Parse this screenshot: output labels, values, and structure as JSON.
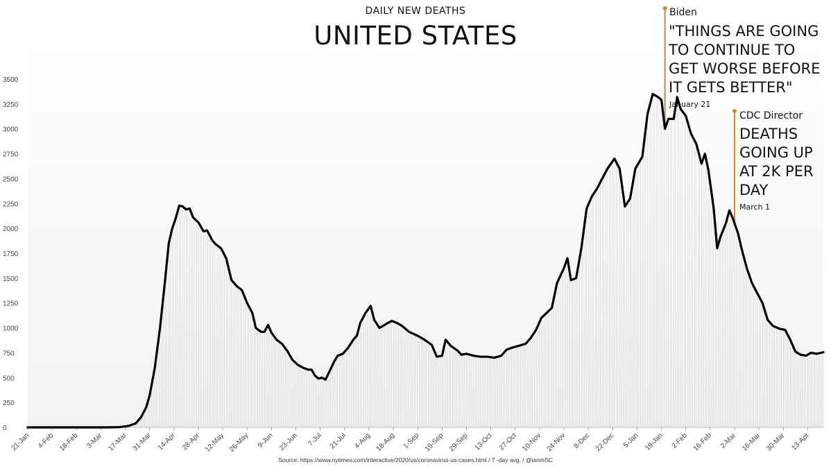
{
  "chart_data": {
    "type": "line",
    "subtitle": "DAILY NEW DEATHS",
    "title": "UNITED STATES",
    "xlabel": "",
    "ylabel": "",
    "ylim": [
      0,
      3500
    ],
    "yticks": [
      0,
      250,
      500,
      750,
      1000,
      1250,
      1500,
      1750,
      2000,
      2250,
      2500,
      2750,
      3000,
      3250,
      3500
    ],
    "xlim": [
      "2020-01-21",
      "2021-04-22"
    ],
    "xticks": [
      {
        "date": "2020-01-21",
        "label": "21-Jan"
      },
      {
        "date": "2020-02-04",
        "label": "4-Feb"
      },
      {
        "date": "2020-02-18",
        "label": "18-Feb"
      },
      {
        "date": "2020-03-03",
        "label": "3-Mar"
      },
      {
        "date": "2020-03-17",
        "label": "17-Mar"
      },
      {
        "date": "2020-03-31",
        "label": "31-Mar"
      },
      {
        "date": "2020-04-14",
        "label": "14-Apr"
      },
      {
        "date": "2020-04-28",
        "label": "28-Apr"
      },
      {
        "date": "2020-05-12",
        "label": "12-May"
      },
      {
        "date": "2020-05-26",
        "label": "26-May"
      },
      {
        "date": "2020-06-09",
        "label": "9-Jun"
      },
      {
        "date": "2020-06-23",
        "label": "23-Jun"
      },
      {
        "date": "2020-07-07",
        "label": "7-Jul"
      },
      {
        "date": "2020-07-21",
        "label": "21-Jul"
      },
      {
        "date": "2020-08-04",
        "label": "4-Aug"
      },
      {
        "date": "2020-08-18",
        "label": "18-Aug"
      },
      {
        "date": "2020-09-01",
        "label": "1-Sep"
      },
      {
        "date": "2020-09-15",
        "label": "15-Sep"
      },
      {
        "date": "2020-09-29",
        "label": "29-Sep"
      },
      {
        "date": "2020-10-13",
        "label": "13-Oct"
      },
      {
        "date": "2020-10-27",
        "label": "27-Oct"
      },
      {
        "date": "2020-11-10",
        "label": "10-Nov"
      },
      {
        "date": "2020-11-24",
        "label": "24-Nov"
      },
      {
        "date": "2020-12-08",
        "label": "8-Dec"
      },
      {
        "date": "2020-12-22",
        "label": "22-Dec"
      },
      {
        "date": "2021-01-05",
        "label": "5-Jan"
      },
      {
        "date": "2021-01-19",
        "label": "19-Jan"
      },
      {
        "date": "2021-02-02",
        "label": "2-Feb"
      },
      {
        "date": "2021-02-16",
        "label": "16-Feb"
      },
      {
        "date": "2021-03-02",
        "label": "2-Mar"
      },
      {
        "date": "2021-03-16",
        "label": "16-Mar"
      },
      {
        "date": "2021-03-30",
        "label": "30-Mar"
      },
      {
        "date": "2021-04-13",
        "label": "13-Apr"
      }
    ],
    "grid": false,
    "series": [
      {
        "name": "",
        "color": "#000000",
        "points": [
          [
            "2020-01-21",
            0
          ],
          [
            "2020-03-07",
            0
          ],
          [
            "2020-03-14",
            3
          ],
          [
            "2020-03-19",
            15
          ],
          [
            "2020-03-23",
            40
          ],
          [
            "2020-03-26",
            100
          ],
          [
            "2020-03-29",
            200
          ],
          [
            "2020-03-31",
            320
          ],
          [
            "2020-04-03",
            600
          ],
          [
            "2020-04-06",
            1000
          ],
          [
            "2020-04-09",
            1500
          ],
          [
            "2020-04-11",
            1850
          ],
          [
            "2020-04-13",
            2000
          ],
          [
            "2020-04-15",
            2100
          ],
          [
            "2020-04-17",
            2230
          ],
          [
            "2020-04-19",
            2220
          ],
          [
            "2020-04-21",
            2190
          ],
          [
            "2020-04-23",
            2200
          ],
          [
            "2020-04-25",
            2110
          ],
          [
            "2020-04-28",
            2060
          ],
          [
            "2020-05-01",
            1970
          ],
          [
            "2020-05-03",
            1980
          ],
          [
            "2020-05-06",
            1880
          ],
          [
            "2020-05-08",
            1840
          ],
          [
            "2020-05-11",
            1800
          ],
          [
            "2020-05-14",
            1700
          ],
          [
            "2020-05-17",
            1480
          ],
          [
            "2020-05-20",
            1420
          ],
          [
            "2020-05-23",
            1380
          ],
          [
            "2020-05-26",
            1250
          ],
          [
            "2020-05-29",
            1150
          ],
          [
            "2020-05-31",
            1000
          ],
          [
            "2020-06-03",
            960
          ],
          [
            "2020-06-05",
            960
          ],
          [
            "2020-06-07",
            1030
          ],
          [
            "2020-06-09",
            950
          ],
          [
            "2020-06-12",
            880
          ],
          [
            "2020-06-15",
            840
          ],
          [
            "2020-06-18",
            770
          ],
          [
            "2020-06-21",
            680
          ],
          [
            "2020-06-24",
            630
          ],
          [
            "2020-06-27",
            600
          ],
          [
            "2020-06-30",
            580
          ],
          [
            "2020-07-02",
            580
          ],
          [
            "2020-07-04",
            520
          ],
          [
            "2020-07-06",
            490
          ],
          [
            "2020-07-08",
            500
          ],
          [
            "2020-07-10",
            480
          ],
          [
            "2020-07-12",
            550
          ],
          [
            "2020-07-15",
            660
          ],
          [
            "2020-07-17",
            720
          ],
          [
            "2020-07-20",
            740
          ],
          [
            "2020-07-23",
            800
          ],
          [
            "2020-07-26",
            880
          ],
          [
            "2020-07-28",
            920
          ],
          [
            "2020-07-30",
            1050
          ],
          [
            "2020-08-02",
            1150
          ],
          [
            "2020-08-05",
            1220
          ],
          [
            "2020-08-07",
            1080
          ],
          [
            "2020-08-10",
            1000
          ],
          [
            "2020-08-12",
            1020
          ],
          [
            "2020-08-15",
            1050
          ],
          [
            "2020-08-17",
            1070
          ],
          [
            "2020-08-20",
            1050
          ],
          [
            "2020-08-23",
            1020
          ],
          [
            "2020-08-27",
            960
          ],
          [
            "2020-09-01",
            920
          ],
          [
            "2020-09-05",
            880
          ],
          [
            "2020-09-09",
            830
          ],
          [
            "2020-09-12",
            710
          ],
          [
            "2020-09-15",
            720
          ],
          [
            "2020-09-17",
            880
          ],
          [
            "2020-09-20",
            820
          ],
          [
            "2020-09-24",
            770
          ],
          [
            "2020-09-26",
            730
          ],
          [
            "2020-09-29",
            740
          ],
          [
            "2020-10-03",
            720
          ],
          [
            "2020-10-07",
            710
          ],
          [
            "2020-10-11",
            710
          ],
          [
            "2020-10-15",
            700
          ],
          [
            "2020-10-19",
            720
          ],
          [
            "2020-10-22",
            780
          ],
          [
            "2020-10-25",
            800
          ],
          [
            "2020-10-29",
            820
          ],
          [
            "2020-11-02",
            840
          ],
          [
            "2020-11-05",
            900
          ],
          [
            "2020-11-08",
            980
          ],
          [
            "2020-11-11",
            1100
          ],
          [
            "2020-11-14",
            1150
          ],
          [
            "2020-11-17",
            1200
          ],
          [
            "2020-11-20",
            1450
          ],
          [
            "2020-11-24",
            1600
          ],
          [
            "2020-11-26",
            1700
          ],
          [
            "2020-11-28",
            1480
          ],
          [
            "2020-12-01",
            1500
          ],
          [
            "2020-12-04",
            1800
          ],
          [
            "2020-12-07",
            2200
          ],
          [
            "2020-12-10",
            2320
          ],
          [
            "2020-12-13",
            2400
          ],
          [
            "2020-12-16",
            2500
          ],
          [
            "2020-12-19",
            2600
          ],
          [
            "2020-12-23",
            2700
          ],
          [
            "2020-12-26",
            2600
          ],
          [
            "2020-12-29",
            2220
          ],
          [
            "2021-01-01",
            2300
          ],
          [
            "2021-01-04",
            2600
          ],
          [
            "2021-01-08",
            2720
          ],
          [
            "2021-01-11",
            3150
          ],
          [
            "2021-01-14",
            3350
          ],
          [
            "2021-01-17",
            3320
          ],
          [
            "2021-01-19",
            3290
          ],
          [
            "2021-01-21",
            3000
          ],
          [
            "2021-01-23",
            3100
          ],
          [
            "2021-01-26",
            3100
          ],
          [
            "2021-01-28",
            3320
          ],
          [
            "2021-01-30",
            3200
          ],
          [
            "2021-02-02",
            3130
          ],
          [
            "2021-02-05",
            2950
          ],
          [
            "2021-02-08",
            2850
          ],
          [
            "2021-02-11",
            2650
          ],
          [
            "2021-02-13",
            2750
          ],
          [
            "2021-02-15",
            2580
          ],
          [
            "2021-02-18",
            2200
          ],
          [
            "2021-02-20",
            1800
          ],
          [
            "2021-02-22",
            1920
          ],
          [
            "2021-02-25",
            2050
          ],
          [
            "2021-02-27",
            2180
          ],
          [
            "2021-03-01",
            2100
          ],
          [
            "2021-03-04",
            1950
          ],
          [
            "2021-03-06",
            1800
          ],
          [
            "2021-03-09",
            1600
          ],
          [
            "2021-03-12",
            1450
          ],
          [
            "2021-03-15",
            1350
          ],
          [
            "2021-03-18",
            1250
          ],
          [
            "2021-03-21",
            1080
          ],
          [
            "2021-03-24",
            1020
          ],
          [
            "2021-03-28",
            990
          ],
          [
            "2021-03-31",
            980
          ],
          [
            "2021-04-03",
            880
          ],
          [
            "2021-04-06",
            760
          ],
          [
            "2021-04-09",
            730
          ],
          [
            "2021-04-12",
            720
          ],
          [
            "2021-04-15",
            750
          ],
          [
            "2021-04-18",
            740
          ],
          [
            "2021-04-22",
            755
          ]
        ]
      }
    ],
    "annotations": [
      {
        "date": "2021-01-21",
        "value": 3000,
        "name": "Biden",
        "quote_lines": [
          "\"THINGS ARE GOING",
          "TO CONTINUE TO",
          "GET WORSE BEFORE",
          "IT GETS BETTER\""
        ],
        "date_label": "January 21",
        "color": "#d4813a"
      },
      {
        "date": "2021-03-02",
        "value": 2030,
        "name": "CDC Director",
        "quote_lines": [
          "DEATHS",
          "GOING UP",
          "AT 2K PER",
          "DAY"
        ],
        "date_label": "March 1",
        "color": "#d4813a"
      }
    ]
  },
  "source": "Source: https://www.nytimes.com/interactive/2020/us/coronavirus-us-cases.html / 7 -day avg. / @ianmSC"
}
